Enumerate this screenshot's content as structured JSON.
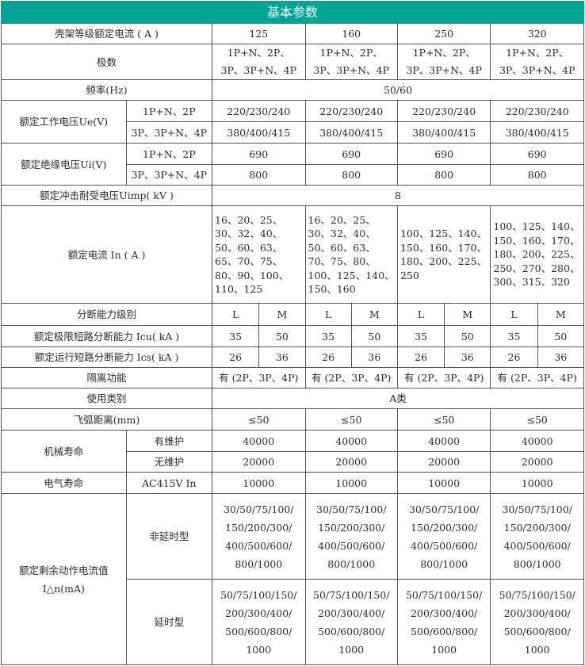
{
  "title": "基本参数",
  "frame_label": "壳架等级额定电流 ( A )",
  "frames": [
    "125",
    "160",
    "250",
    "320"
  ],
  "poles_label": "极数",
  "poles": "1P+N、2P、\n3P、3P+N、4P",
  "freq_label": "频率(Hz)",
  "freq": "50/60",
  "ue_label": "额定工作电压Ue(V)",
  "ui_label": "额定绝缘电压Ui(V)",
  "sub_1p": "1P+N、2P",
  "sub_3p": "3P、3P+N、4P",
  "ue_1p": "220/230/240",
  "ue_3p": "380/400/415",
  "ui_1p": "690",
  "ui_3p": "800",
  "uimp_label": "额定冲击耐受电压Uimp( kV )",
  "uimp": "8",
  "in_label": "额定电流 In ( A )",
  "in_values": [
    "16、20、25、\n30、32、40、\n50、60、63、\n65、70、75、\n80、90、100、\n110、125",
    "16、20、25、\n30、32、40、\n50、60、63、\n70、75、80、\n100、125、140、\n150、160",
    "100、125、140、\n150、160、170、\n180、200、225、\n250",
    "100、125、140、\n150、160、170、\n180、200、225、\n250、270、280、\n300、315、320"
  ],
  "break_label": "分断能力级别",
  "L": "L",
  "M": "M",
  "icu_label": "额定极限短路分断能力 Icu( kA )",
  "icu_L": "35",
  "icu_M": "50",
  "ics_label": "额定运行短路分断能力 Ics( kA )",
  "ics_L": "26",
  "ics_M": "36",
  "iso_label": "隔离功能",
  "iso": "有 (2P、3P、4P)",
  "cat_label": "使用类别",
  "cat": "A类",
  "arc_label": "飞弧距离(mm)",
  "arc": "≤50",
  "mech_label": "机械寿命",
  "mech_maint_label": "有维护",
  "mech_maint": "40000",
  "mech_nomaint_label": "无维护",
  "mech_nomaint": "20000",
  "elec_label": "电气寿命",
  "elec_sub": "AC415V In",
  "elec": "10000",
  "rcd_label": "额定剩余动作电流值\nI△n(mA)",
  "rcd_inst_label": "非延时型",
  "rcd_inst": "30/50/75/100/\n150/200/300/\n400/500/600/\n800/1000",
  "rcd_delay_label": "延时型",
  "rcd_delay": "50/75/100/150/\n200/300/400/\n500/600/800/\n1000"
}
